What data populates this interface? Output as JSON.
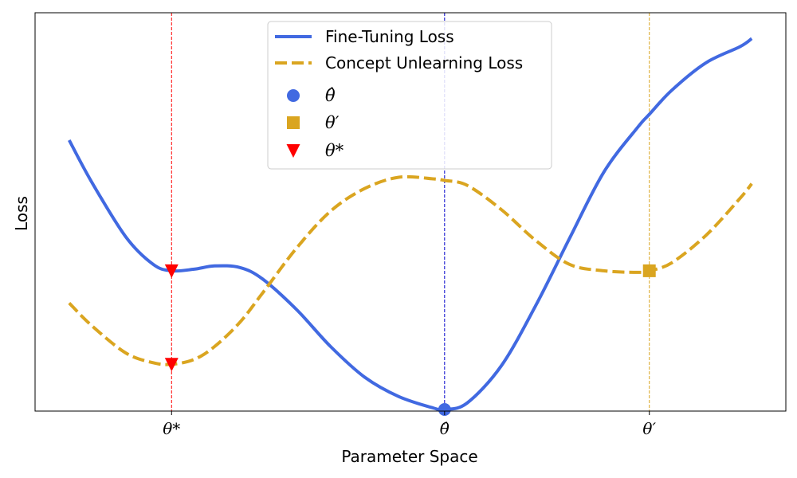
{
  "chart_data": {
    "type": "line",
    "title": "",
    "xlabel": "Parameter Space",
    "ylabel": "Loss",
    "xlim": [
      -4.33,
      6.67
    ],
    "ylim": [
      0.11,
      2.58
    ],
    "grid": false,
    "legend_position": "top-center",
    "ticks": [
      {
        "x": -2.33,
        "label": "θ*"
      },
      {
        "x": 1.67,
        "label": "θ̂"
      },
      {
        "x": 4.67,
        "label": "θ′"
      }
    ],
    "series": [
      {
        "name": "Fine-Tuning Loss",
        "color": "#4169E1",
        "style": "solid",
        "x": [
          -3.83,
          -3.5,
          -3.0,
          -2.6,
          -2.33,
          -2.0,
          -1.7,
          -1.33,
          -1.0,
          -0.5,
          0.0,
          0.5,
          1.0,
          1.5,
          1.67,
          2.0,
          2.5,
          3.0,
          3.5,
          4.0,
          4.5,
          4.67,
          5.0,
          5.5,
          6.0,
          6.17
        ],
        "values": [
          1.79,
          1.53,
          1.19,
          1.02,
          0.98,
          0.99,
          1.01,
          1.0,
          0.93,
          0.74,
          0.51,
          0.32,
          0.2,
          0.13,
          0.12,
          0.16,
          0.39,
          0.76,
          1.18,
          1.59,
          1.87,
          1.95,
          2.1,
          2.27,
          2.37,
          2.42
        ]
      },
      {
        "name": "Concept Unlearning Loss",
        "color": "#DAA520",
        "style": "dashed",
        "x": [
          -3.83,
          -3.5,
          -3.0,
          -2.6,
          -2.33,
          -2.0,
          -1.7,
          -1.33,
          -1.0,
          -0.5,
          0.0,
          0.5,
          1.0,
          1.5,
          1.67,
          2.0,
          2.5,
          3.0,
          3.5,
          4.0,
          4.5,
          4.67,
          5.0,
          5.5,
          6.0,
          6.17
        ],
        "values": [
          0.78,
          0.64,
          0.47,
          0.41,
          0.4,
          0.43,
          0.51,
          0.66,
          0.84,
          1.12,
          1.35,
          1.49,
          1.56,
          1.55,
          1.54,
          1.51,
          1.36,
          1.17,
          1.02,
          0.98,
          0.97,
          0.98,
          1.03,
          1.2,
          1.43,
          1.52
        ]
      },
      {
        "name": "θ̂",
        "type": "marker",
        "marker": "circle",
        "color": "#4169E1",
        "x": [
          1.67
        ],
        "values": [
          0.12
        ]
      },
      {
        "name": "θ′",
        "type": "marker",
        "marker": "square",
        "color": "#DAA520",
        "x": [
          4.67
        ],
        "values": [
          0.98
        ]
      },
      {
        "name": "θ*",
        "type": "marker",
        "marker": "triangle-down",
        "color": "#FF0000",
        "x": [
          -2.33,
          -2.33
        ],
        "values": [
          0.98,
          0.4
        ]
      }
    ],
    "vlines": [
      {
        "x": -2.33,
        "color": "#FF0000",
        "style": "dashed"
      },
      {
        "x": 1.67,
        "color": "#0000CC",
        "style": "dashed"
      },
      {
        "x": 4.67,
        "color": "#DAA520",
        "style": "dashed"
      }
    ]
  }
}
